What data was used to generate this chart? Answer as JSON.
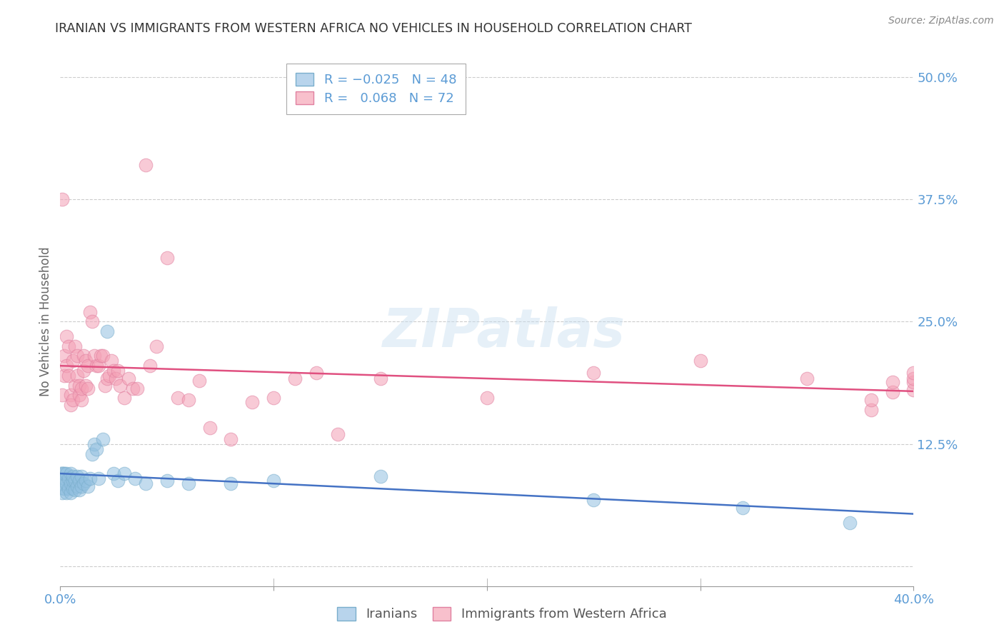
{
  "title": "IRANIAN VS IMMIGRANTS FROM WESTERN AFRICA NO VEHICLES IN HOUSEHOLD CORRELATION CHART",
  "source": "Source: ZipAtlas.com",
  "ylabel": "No Vehicles in Household",
  "xlim": [
    0.0,
    0.4
  ],
  "ylim": [
    -0.02,
    0.52
  ],
  "xticks": [
    0.0,
    0.1,
    0.2,
    0.3,
    0.4
  ],
  "xticklabels": [
    "0.0%",
    "",
    "",
    "",
    "40.0%"
  ],
  "yticks_right": [
    0.0,
    0.125,
    0.25,
    0.375,
    0.5
  ],
  "yticklabels_right": [
    "",
    "12.5%",
    "25.0%",
    "37.5%",
    "50.0%"
  ],
  "watermark": "ZIPatlas",
  "blue_color": "#92c0e0",
  "pink_color": "#f4a0b5",
  "blue_line_color": "#4472c4",
  "pink_line_color": "#e05080",
  "grid_color": "#cccccc",
  "axis_label_color": "#5b9bd5",
  "iranians_x": [
    0.001,
    0.001,
    0.001,
    0.002,
    0.002,
    0.002,
    0.003,
    0.003,
    0.003,
    0.004,
    0.004,
    0.005,
    0.005,
    0.005,
    0.006,
    0.006,
    0.006,
    0.007,
    0.007,
    0.008,
    0.008,
    0.009,
    0.009,
    0.01,
    0.01,
    0.011,
    0.012,
    0.013,
    0.014,
    0.015,
    0.016,
    0.017,
    0.018,
    0.02,
    0.022,
    0.025,
    0.027,
    0.03,
    0.035,
    0.04,
    0.05,
    0.06,
    0.08,
    0.1,
    0.15,
    0.25,
    0.32,
    0.37
  ],
  "iranians_y": [
    0.075,
    0.085,
    0.095,
    0.08,
    0.09,
    0.095,
    0.075,
    0.085,
    0.095,
    0.08,
    0.09,
    0.075,
    0.085,
    0.095,
    0.08,
    0.088,
    0.092,
    0.078,
    0.088,
    0.082,
    0.092,
    0.078,
    0.088,
    0.082,
    0.092,
    0.085,
    0.088,
    0.082,
    0.09,
    0.115,
    0.125,
    0.12,
    0.09,
    0.13,
    0.24,
    0.095,
    0.088,
    0.095,
    0.09,
    0.085,
    0.088,
    0.085,
    0.085,
    0.088,
    0.092,
    0.068,
    0.06,
    0.045
  ],
  "western_africa_x": [
    0.001,
    0.001,
    0.002,
    0.002,
    0.003,
    0.003,
    0.004,
    0.004,
    0.005,
    0.005,
    0.006,
    0.006,
    0.007,
    0.007,
    0.008,
    0.008,
    0.009,
    0.009,
    0.01,
    0.01,
    0.011,
    0.011,
    0.012,
    0.012,
    0.013,
    0.013,
    0.014,
    0.015,
    0.016,
    0.017,
    0.018,
    0.019,
    0.02,
    0.021,
    0.022,
    0.023,
    0.024,
    0.025,
    0.026,
    0.027,
    0.028,
    0.03,
    0.032,
    0.034,
    0.036,
    0.04,
    0.042,
    0.045,
    0.05,
    0.055,
    0.06,
    0.065,
    0.07,
    0.08,
    0.09,
    0.1,
    0.11,
    0.12,
    0.13,
    0.15,
    0.2,
    0.25,
    0.3,
    0.35,
    0.38,
    0.38,
    0.39,
    0.39,
    0.4,
    0.4,
    0.4,
    0.4
  ],
  "western_africa_y": [
    0.375,
    0.175,
    0.195,
    0.215,
    0.235,
    0.205,
    0.195,
    0.225,
    0.175,
    0.165,
    0.17,
    0.21,
    0.185,
    0.225,
    0.195,
    0.215,
    0.175,
    0.185,
    0.17,
    0.182,
    0.2,
    0.215,
    0.21,
    0.185,
    0.205,
    0.182,
    0.26,
    0.25,
    0.215,
    0.205,
    0.205,
    0.215,
    0.215,
    0.185,
    0.192,
    0.195,
    0.21,
    0.2,
    0.192,
    0.2,
    0.185,
    0.172,
    0.192,
    0.182,
    0.182,
    0.41,
    0.205,
    0.225,
    0.315,
    0.172,
    0.17,
    0.19,
    0.142,
    0.13,
    0.168,
    0.172,
    0.192,
    0.198,
    0.135,
    0.192,
    0.172,
    0.198,
    0.21,
    0.192,
    0.16,
    0.17,
    0.178,
    0.188,
    0.18,
    0.188,
    0.192,
    0.198
  ]
}
